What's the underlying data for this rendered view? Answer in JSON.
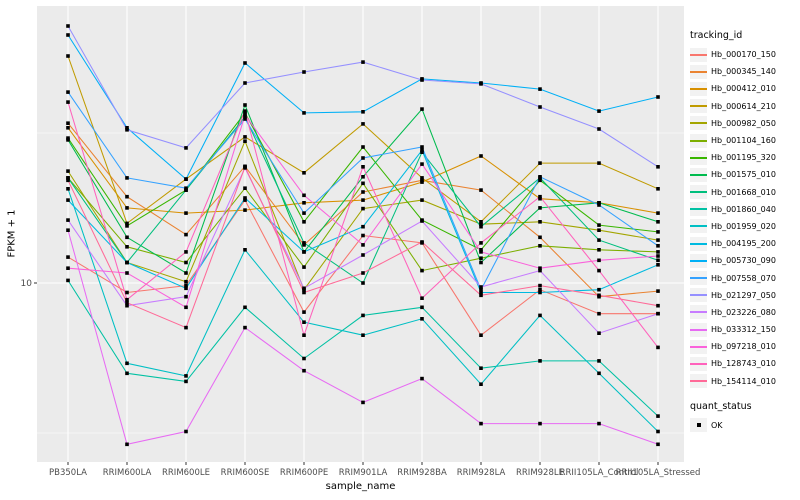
{
  "figure": {
    "ylabel": "FPKM + 1",
    "xlabel": "sample_name",
    "y_tick_label": "10"
  },
  "legend": {
    "tracking_title": "tracking_id",
    "quant_title": "quant_status",
    "quant_ok_label": "OK"
  },
  "colors": {
    "panel_bg": "#EBEBEB",
    "grid": "#FFFFFF",
    "point": "#000000",
    "tick_text": "#4D4D4D",
    "tick_mark": "#333333"
  },
  "chart_data": {
    "type": "line",
    "title": "",
    "xlabel": "sample_name",
    "ylabel": "FPKM + 1",
    "log_scale_y": true,
    "y_major_break": 10,
    "y_minor_breaks": [
      3.162,
      31.62
    ],
    "legend_position": "right",
    "grid": true,
    "point_shape": "filled-square",
    "quant_status": "OK",
    "categories": [
      "PB350LA",
      "RRIM600LA",
      "RRIM600LE",
      "RRIM600SE",
      "RRIM600PE",
      "RRIM901LA",
      "RRIM928BA",
      "RRIM928LA",
      "RRIM928LE",
      "RRII105LA_Control",
      "RRII105LA_Stressed"
    ],
    "series": [
      {
        "name": "Hb_000170_150",
        "color": "#F8766D",
        "values": [
          12.2,
          9.3,
          9.8,
          18.9,
          8.0,
          14.4,
          13.6,
          6.7,
          9.5,
          7.9,
          7.9
        ]
      },
      {
        "name": "Hb_000345_140",
        "color": "#EA8331",
        "values": [
          34.1,
          19.4,
          14.5,
          24.5,
          13.4,
          20.1,
          22.0,
          20.4,
          14.2,
          9.0,
          9.4
        ]
      },
      {
        "name": "Hb_000412_010",
        "color": "#D89000",
        "values": [
          32.9,
          17.8,
          17.1,
          17.5,
          18.5,
          18.9,
          21.7,
          26.5,
          19.1,
          18.5,
          17.1
        ]
      },
      {
        "name": "Hb_000614_210",
        "color": "#C09B00",
        "values": [
          57.1,
          15.8,
          22.2,
          30.7,
          23.3,
          33.9,
          22.4,
          16.0,
          25.1,
          25.1,
          20.6
        ]
      },
      {
        "name": "Hb_000982_050",
        "color": "#A3A500",
        "values": [
          23.6,
          11.7,
          10.1,
          29.7,
          9.5,
          17.7,
          18.9,
          15.7,
          16.0,
          15.0,
          13.9
        ]
      },
      {
        "name": "Hb_001104_160",
        "color": "#7CAE00",
        "values": [
          22.4,
          13.2,
          11.7,
          20.7,
          11.3,
          21.5,
          11.0,
          12.1,
          13.3,
          12.9,
          12.7
        ]
      },
      {
        "name": "Hb_001195_320",
        "color": "#39B600",
        "values": [
          30.4,
          15.5,
          20.4,
          36.9,
          16.0,
          28.4,
          16.2,
          12.9,
          22.0,
          15.6,
          14.8
        ]
      },
      {
        "name": "Hb_001575_010",
        "color": "#00BB4E",
        "values": [
          30.0,
          14.2,
          10.8,
          39.2,
          12.7,
          22.6,
          38.0,
          11.7,
          17.8,
          18.5,
          16.0
        ]
      },
      {
        "name": "Hb_001668_010",
        "color": "#00BF7D",
        "values": [
          22.4,
          11.7,
          20.4,
          35.8,
          13.6,
          10.0,
          27.3,
          15.4,
          22.4,
          13.9,
          11.9
        ]
      },
      {
        "name": "Hb_001860_040",
        "color": "#00C1A3",
        "values": [
          10.2,
          5.0,
          4.7,
          8.3,
          5.6,
          7.8,
          8.3,
          5.2,
          5.5,
          5.5,
          3.6
        ]
      },
      {
        "name": "Hb_001959_020",
        "color": "#00BFC4",
        "values": [
          20.6,
          5.4,
          4.9,
          12.9,
          7.4,
          6.7,
          7.6,
          4.6,
          7.8,
          5.0,
          3.2
        ]
      },
      {
        "name": "Hb_004195_200",
        "color": "#00BAE0",
        "values": [
          18.9,
          11.7,
          9.6,
          19.2,
          12.7,
          15.4,
          27.7,
          9.3,
          9.3,
          9.5,
          11.5
        ]
      },
      {
        "name": "Hb_005730_090",
        "color": "#00B0F6",
        "values": [
          67.1,
          32.9,
          22.2,
          54.1,
          36.9,
          37.2,
          47.9,
          46.4,
          44.3,
          37.4,
          41.7
        ]
      },
      {
        "name": "Hb_007558_070",
        "color": "#35A2FF",
        "values": [
          43.3,
          22.4,
          20.7,
          35.2,
          17.1,
          26.1,
          28.4,
          9.5,
          22.6,
          18.2,
          13.3
        ]
      },
      {
        "name": "Hb_021297_050",
        "color": "#9590FF",
        "values": [
          71.9,
          32.4,
          28.2,
          46.4,
          50.5,
          54.5,
          47.5,
          46.1,
          38.6,
          32.6,
          24.4
        ]
      },
      {
        "name": "Hb_023226_080",
        "color": "#C77CFF",
        "values": [
          16.2,
          8.4,
          9.0,
          24.2,
          9.6,
          12.4,
          16.1,
          9.7,
          11.0,
          6.8,
          7.9
        ]
      },
      {
        "name": "Hb_033312_150",
        "color": "#E76BF3",
        "values": [
          15.0,
          2.9,
          3.2,
          7.1,
          5.1,
          4.0,
          4.8,
          3.4,
          3.4,
          3.4,
          2.9
        ]
      },
      {
        "name": "Hb_097218_010",
        "color": "#FA62DB",
        "values": [
          11.2,
          10.8,
          8.3,
          36.3,
          19.6,
          13.4,
          24.9,
          12.7,
          11.2,
          11.9,
          12.3
        ]
      },
      {
        "name": "Hb_128743_010",
        "color": "#FF62BC",
        "values": [
          40.1,
          8.8,
          12.7,
          37.4,
          6.7,
          24.4,
          8.9,
          13.6,
          19.4,
          11.0,
          6.1
        ]
      },
      {
        "name": "Hb_154114_010",
        "color": "#FF6A98",
        "values": [
          22.0,
          8.6,
          7.1,
          24.4,
          9.3,
          10.8,
          13.7,
          9.1,
          9.8,
          9.1,
          8.4
        ]
      }
    ]
  }
}
